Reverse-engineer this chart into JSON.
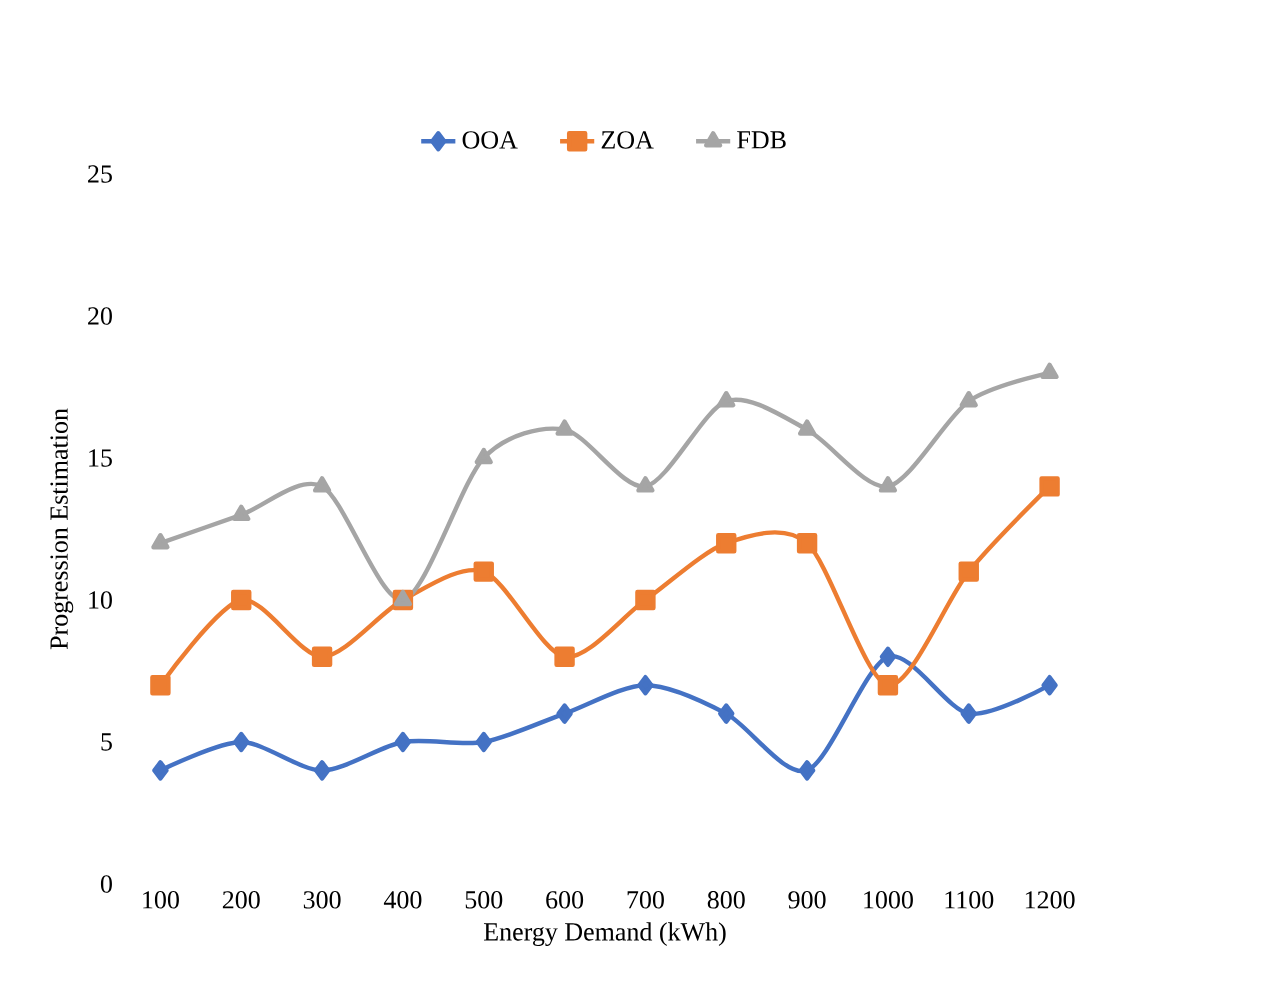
{
  "chart_data": {
    "type": "line",
    "xlabel": "Energy Demand (kWh)",
    "ylabel": "Progression  Estimation",
    "categories": [
      "100",
      "200",
      "300",
      "400",
      "500",
      "600",
      "700",
      "800",
      "900",
      "1000",
      "1100",
      "1200"
    ],
    "series": [
      {
        "name": "OOA",
        "color": "#4472c4",
        "marker": "diamond",
        "values": [
          4,
          5,
          4,
          5,
          5,
          6,
          7,
          6,
          4,
          8,
          6,
          7
        ]
      },
      {
        "name": "ZOA",
        "color": "#ed7d31",
        "marker": "square",
        "values": [
          7,
          10,
          8,
          10,
          11,
          8,
          10,
          12,
          12,
          7,
          11,
          14
        ]
      },
      {
        "name": "FDB",
        "color": "#a5a5a5",
        "marker": "triangle",
        "values": [
          12,
          13,
          14,
          10,
          15,
          16,
          14,
          17,
          16,
          14,
          17,
          18
        ]
      }
    ],
    "ylim": [
      0,
      25
    ],
    "yticks": [
      0,
      5,
      10,
      15,
      20,
      25
    ],
    "legend": "top"
  }
}
